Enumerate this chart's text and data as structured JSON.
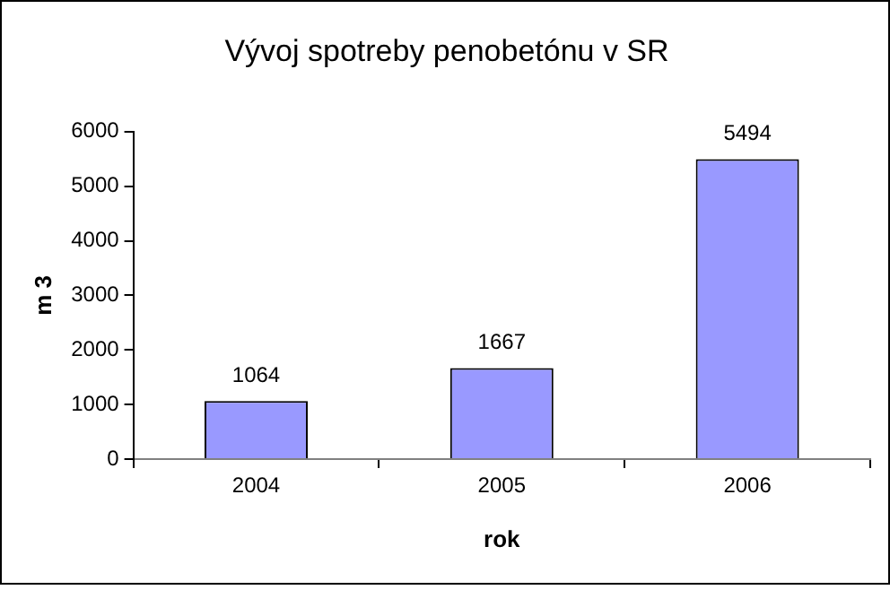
{
  "chart_data": {
    "type": "bar",
    "title": "Vývoj spotreby penobetónu v SR",
    "xlabel": "rok",
    "ylabel": "m 3",
    "categories": [
      "2004",
      "2005",
      "2006"
    ],
    "values": [
      1064,
      1667,
      5494
    ],
    "color": "#9999ff",
    "ylim": [
      0,
      6000
    ],
    "yticks": [
      0,
      1000,
      2000,
      3000,
      4000,
      5000,
      6000
    ],
    "grid": false,
    "legend": false,
    "data_labels": true
  }
}
